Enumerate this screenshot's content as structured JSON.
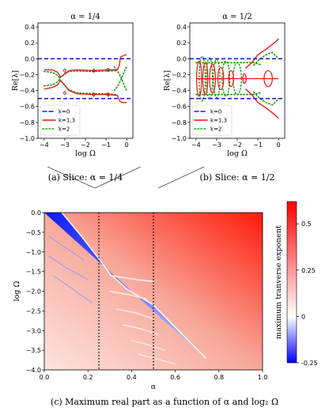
{
  "figure": {
    "caption_a": "(a) Slice: α = 1/4",
    "caption_b": "(b) Slice: α = 1/2",
    "caption_c": "(c) Maximum real part as a function of α and log₂ Ω"
  },
  "chart_data": [
    {
      "id": "a",
      "type": "line",
      "title": "α = 1/4",
      "xlabel": "log Ω",
      "ylabel": "Re[λ]",
      "xlim": [
        -4.3,
        0.3
      ],
      "ylim": [
        -1.0,
        0.45
      ],
      "xticks": [
        -4,
        -3,
        -2,
        -1,
        0
      ],
      "yticks": [
        0.4,
        0.2,
        0.0,
        -0.2,
        -0.4,
        -0.6,
        -0.8,
        -1.0
      ],
      "ytick_labels": [
        "0.4",
        "0.2",
        "0.0",
        "−0.2",
        "−0.4",
        "−0.6",
        "−0.8",
        "−1.0"
      ],
      "legend": [
        "k=0",
        "k=1,3",
        "k=2"
      ],
      "legend_position": "lower-left",
      "colors": {
        "k0": "#1f1fd0",
        "k13": "#e8140f",
        "k2": "#1a9a1a"
      },
      "k0_levels": [
        0.0,
        -0.5
      ],
      "k13_curves": [
        {
          "x": [
            -4,
            -3.6,
            -3.35,
            -3.2
          ],
          "y": [
            -0.14,
            -0.14,
            -0.17,
            -0.23
          ]
        },
        {
          "x": [
            -4,
            -3.6,
            -3.35,
            -3.2
          ],
          "y": [
            -0.38,
            -0.36,
            -0.33,
            -0.27
          ]
        },
        {
          "x": [
            -3.2,
            -2.8,
            -2.4,
            -1.6,
            -1.0,
            -0.45,
            -0.35
          ],
          "y": [
            -0.23,
            -0.15,
            -0.14,
            -0.15,
            -0.14,
            -0.14,
            -0.08
          ]
        },
        {
          "x": [
            -3.2,
            -2.8,
            -2.4,
            -1.6,
            -1.0,
            -0.45,
            -0.35
          ],
          "y": [
            -0.27,
            -0.4,
            -0.44,
            -0.45,
            -0.45,
            -0.46,
            -0.52
          ]
        },
        {
          "x": [
            -0.35,
            -0.3,
            -0.15,
            0.0
          ],
          "y": [
            -0.08,
            0.02,
            0.04,
            0.05
          ]
        },
        {
          "x": [
            -0.35,
            -0.3,
            -0.15,
            0.0
          ],
          "y": [
            -0.52,
            -0.54,
            -0.55,
            -0.55
          ]
        }
      ],
      "k2_curves": [
        {
          "x": [
            -4,
            -3.6,
            -3.4,
            -3.25
          ],
          "y": [
            -0.16,
            -0.17,
            -0.2,
            -0.24
          ]
        },
        {
          "x": [
            -4,
            -3.6,
            -3.4,
            -3.25
          ],
          "y": [
            -0.34,
            -0.33,
            -0.3,
            -0.26
          ]
        },
        {
          "x": [
            -3.25,
            -2.8,
            -2.4,
            -1.6,
            -1.0,
            -0.5
          ],
          "y": [
            -0.24,
            -0.16,
            -0.155,
            -0.16,
            -0.155,
            -0.15
          ]
        },
        {
          "x": [
            -3.25,
            -2.8,
            -2.4,
            -1.6,
            -1.0,
            -0.5
          ],
          "y": [
            -0.26,
            -0.39,
            -0.43,
            -0.44,
            -0.44,
            -0.45
          ]
        },
        {
          "x": [
            -0.6,
            -0.45,
            -0.25,
            -0.1,
            0.0
          ],
          "y": [
            -0.1,
            -0.15,
            -0.25,
            -0.35,
            -0.4
          ]
        },
        {
          "x": [
            -0.6,
            -0.45,
            -0.25,
            -0.1,
            0.0
          ],
          "y": [
            -0.4,
            -0.35,
            -0.25,
            -0.15,
            -0.1
          ]
        }
      ],
      "loops": [
        {
          "cx": -3.0,
          "cy": -0.15,
          "rx": 0.05,
          "ry": 0.02
        },
        {
          "cx": -3.0,
          "cy": -0.43,
          "rx": 0.05,
          "ry": 0.02
        },
        {
          "cx": -1.6,
          "cy": -0.15,
          "rx": 0.05,
          "ry": 0.02
        },
        {
          "cx": -1.6,
          "cy": -0.45,
          "rx": 0.05,
          "ry": 0.02
        },
        {
          "cx": -0.9,
          "cy": -0.14,
          "rx": 0.05,
          "ry": 0.02
        },
        {
          "cx": -0.9,
          "cy": -0.45,
          "rx": 0.05,
          "ry": 0.02
        }
      ]
    },
    {
      "id": "b",
      "type": "line",
      "title": "α = 1/2",
      "xlabel": "log Ω",
      "ylabel": "Re[λ]",
      "xlim": [
        -4.3,
        0.3
      ],
      "ylim": [
        -1.0,
        0.45
      ],
      "xticks": [
        -4,
        -3,
        -2,
        -1,
        0
      ],
      "yticks": [
        0.4,
        0.2,
        0.0,
        -0.2,
        -0.4,
        -0.6,
        -0.8,
        -1.0
      ],
      "ytick_labels": [
        "0.4",
        "0.2",
        "0.0",
        "−0.2",
        "−0.4",
        "−0.6",
        "−0.8",
        "−1.0"
      ],
      "legend": [
        "k=0",
        "k=1,3",
        "k=2"
      ],
      "legend_position": "lower-left",
      "colors": {
        "k0": "#1f1fd0",
        "k13": "#e8140f",
        "k2": "#1a9a1a"
      },
      "k0_levels": [
        0.0,
        -0.5
      ],
      "k13_curves": [
        {
          "x": [
            -4,
            -3.0,
            -2.0,
            -1.0,
            -0.5,
            -0.3,
            0.0
          ],
          "y": [
            -0.25,
            -0.25,
            -0.25,
            -0.25,
            -0.25,
            -0.25,
            -0.25
          ]
        },
        {
          "x": [
            -1.6,
            -1.3,
            -1.0,
            -0.6,
            -0.2,
            0.0
          ],
          "y": [
            -0.12,
            -0.05,
            0.05,
            0.12,
            0.2,
            0.25
          ]
        },
        {
          "x": [
            -1.6,
            -1.3,
            -1.0,
            -0.6,
            -0.2,
            0.0
          ],
          "y": [
            -0.38,
            -0.45,
            -0.55,
            -0.62,
            -0.7,
            -0.75
          ]
        }
      ],
      "k2_curves": [
        {
          "x": [
            -4,
            -3.0,
            -2.0,
            -1.2,
            -0.8
          ],
          "y": [
            -0.05,
            -0.05,
            -0.05,
            -0.05,
            -0.08
          ]
        },
        {
          "x": [
            -4,
            -3.0,
            -2.0,
            -1.2,
            -0.8
          ],
          "y": [
            -0.45,
            -0.45,
            -0.45,
            -0.45,
            -0.42
          ]
        },
        {
          "x": [
            -1.2,
            -0.9,
            -0.6,
            -0.3,
            -0.1,
            0.0
          ],
          "y": [
            -0.08,
            0.0,
            0.05,
            0.08,
            0.03,
            0.0
          ]
        },
        {
          "x": [
            -1.2,
            -0.9,
            -0.6,
            -0.3,
            -0.1,
            0.0
          ],
          "y": [
            -0.42,
            -0.5,
            -0.55,
            -0.58,
            -0.53,
            -0.5
          ]
        }
      ],
      "ovals_k13": [
        {
          "cx": -3.85,
          "cy": -0.25,
          "rx": 0.12,
          "ry": 0.22
        },
        {
          "cx": -3.55,
          "cy": -0.25,
          "rx": 0.12,
          "ry": 0.2
        },
        {
          "cx": -3.2,
          "cy": -0.25,
          "rx": 0.14,
          "ry": 0.18
        },
        {
          "cx": -2.8,
          "cy": -0.25,
          "rx": 0.14,
          "ry": 0.14
        },
        {
          "cx": -2.3,
          "cy": -0.25,
          "rx": 0.12,
          "ry": 0.1
        },
        {
          "cx": -1.65,
          "cy": -0.25,
          "rx": 0.08,
          "ry": 0.06
        },
        {
          "cx": -0.5,
          "cy": -0.25,
          "rx": 0.2,
          "ry": 0.1
        }
      ],
      "ovals_k2": [
        {
          "cx": -3.7,
          "cy": -0.25,
          "rx": 0.15,
          "ry": 0.28
        },
        {
          "cx": -3.35,
          "cy": -0.25,
          "rx": 0.15,
          "ry": 0.26
        },
        {
          "cx": -3.0,
          "cy": -0.25,
          "rx": 0.16,
          "ry": 0.24
        },
        {
          "cx": -2.55,
          "cy": -0.25,
          "rx": 0.18,
          "ry": 0.22
        },
        {
          "cx": -2.0,
          "cy": -0.25,
          "rx": 0.2,
          "ry": 0.2
        }
      ]
    },
    {
      "id": "c",
      "type": "heatmap",
      "xlabel": "α",
      "ylabel": "log Ω",
      "xlim": [
        0.0,
        1.0
      ],
      "ylim": [
        -4.0,
        0.0
      ],
      "xticks": [
        0.0,
        0.2,
        0.4,
        0.6,
        0.8,
        1.0
      ],
      "xtick_labels": [
        "0.0",
        "0.2",
        "0.4",
        "0.6",
        "0.8",
        "1.0"
      ],
      "yticks": [
        0.0,
        -0.5,
        -1.0,
        -1.5,
        -2.0,
        -2.5,
        -3.0,
        -3.5,
        -4.0
      ],
      "ytick_labels": [
        "0.0",
        "−0.5",
        "−1.0",
        "−1.5",
        "−2.0",
        "−2.5",
        "−3.0",
        "−3.5",
        "−4.0"
      ],
      "slices": [
        0.25,
        0.5
      ],
      "colorbar": {
        "label": "maximum tranverse exponent",
        "ticks": [
          0.5,
          0.25,
          0.0,
          -0.25
        ],
        "tick_labels": [
          "0.5",
          "0.25",
          "0",
          "-0.25"
        ],
        "range": [
          -0.25,
          0.62
        ],
        "colors": {
          "low": "#0000ff",
          "zero": "#ffffff",
          "high": "#ff0000"
        }
      },
      "regions": {
        "negative_zone_boundary_alpha_at_logOmega_0": 0.08,
        "negative_zone_boundary_alpha_at_logOmega_-4": 0.82
      }
    }
  ]
}
